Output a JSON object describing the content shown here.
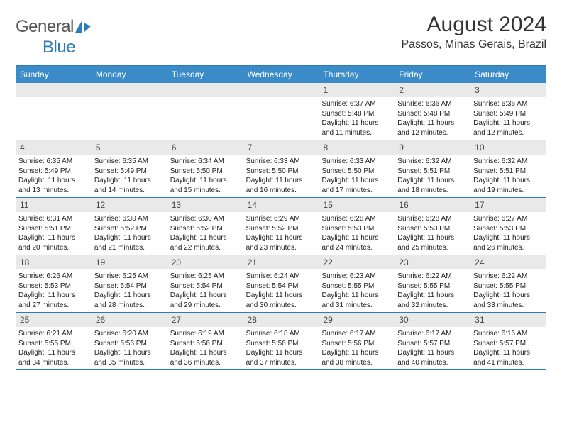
{
  "brand": {
    "part1": "General",
    "part2": "Blue"
  },
  "colors": {
    "accent": "#3b8bc9",
    "border": "#2b7bbd",
    "daynum_bg": "#e9e9e9",
    "text": "#222222"
  },
  "title": "August 2024",
  "location": "Passos, Minas Gerais, Brazil",
  "day_names": [
    "Sunday",
    "Monday",
    "Tuesday",
    "Wednesday",
    "Thursday",
    "Friday",
    "Saturday"
  ],
  "weeks": [
    [
      null,
      null,
      null,
      null,
      {
        "n": "1",
        "sr": "6:37 AM",
        "ss": "5:48 PM",
        "dl": "11 hours and 11 minutes."
      },
      {
        "n": "2",
        "sr": "6:36 AM",
        "ss": "5:48 PM",
        "dl": "11 hours and 12 minutes."
      },
      {
        "n": "3",
        "sr": "6:36 AM",
        "ss": "5:49 PM",
        "dl": "11 hours and 12 minutes."
      }
    ],
    [
      {
        "n": "4",
        "sr": "6:35 AM",
        "ss": "5:49 PM",
        "dl": "11 hours and 13 minutes."
      },
      {
        "n": "5",
        "sr": "6:35 AM",
        "ss": "5:49 PM",
        "dl": "11 hours and 14 minutes."
      },
      {
        "n": "6",
        "sr": "6:34 AM",
        "ss": "5:50 PM",
        "dl": "11 hours and 15 minutes."
      },
      {
        "n": "7",
        "sr": "6:33 AM",
        "ss": "5:50 PM",
        "dl": "11 hours and 16 minutes."
      },
      {
        "n": "8",
        "sr": "6:33 AM",
        "ss": "5:50 PM",
        "dl": "11 hours and 17 minutes."
      },
      {
        "n": "9",
        "sr": "6:32 AM",
        "ss": "5:51 PM",
        "dl": "11 hours and 18 minutes."
      },
      {
        "n": "10",
        "sr": "6:32 AM",
        "ss": "5:51 PM",
        "dl": "11 hours and 19 minutes."
      }
    ],
    [
      {
        "n": "11",
        "sr": "6:31 AM",
        "ss": "5:51 PM",
        "dl": "11 hours and 20 minutes."
      },
      {
        "n": "12",
        "sr": "6:30 AM",
        "ss": "5:52 PM",
        "dl": "11 hours and 21 minutes."
      },
      {
        "n": "13",
        "sr": "6:30 AM",
        "ss": "5:52 PM",
        "dl": "11 hours and 22 minutes."
      },
      {
        "n": "14",
        "sr": "6:29 AM",
        "ss": "5:52 PM",
        "dl": "11 hours and 23 minutes."
      },
      {
        "n": "15",
        "sr": "6:28 AM",
        "ss": "5:53 PM",
        "dl": "11 hours and 24 minutes."
      },
      {
        "n": "16",
        "sr": "6:28 AM",
        "ss": "5:53 PM",
        "dl": "11 hours and 25 minutes."
      },
      {
        "n": "17",
        "sr": "6:27 AM",
        "ss": "5:53 PM",
        "dl": "11 hours and 26 minutes."
      }
    ],
    [
      {
        "n": "18",
        "sr": "6:26 AM",
        "ss": "5:53 PM",
        "dl": "11 hours and 27 minutes."
      },
      {
        "n": "19",
        "sr": "6:25 AM",
        "ss": "5:54 PM",
        "dl": "11 hours and 28 minutes."
      },
      {
        "n": "20",
        "sr": "6:25 AM",
        "ss": "5:54 PM",
        "dl": "11 hours and 29 minutes."
      },
      {
        "n": "21",
        "sr": "6:24 AM",
        "ss": "5:54 PM",
        "dl": "11 hours and 30 minutes."
      },
      {
        "n": "22",
        "sr": "6:23 AM",
        "ss": "5:55 PM",
        "dl": "11 hours and 31 minutes."
      },
      {
        "n": "23",
        "sr": "6:22 AM",
        "ss": "5:55 PM",
        "dl": "11 hours and 32 minutes."
      },
      {
        "n": "24",
        "sr": "6:22 AM",
        "ss": "5:55 PM",
        "dl": "11 hours and 33 minutes."
      }
    ],
    [
      {
        "n": "25",
        "sr": "6:21 AM",
        "ss": "5:55 PM",
        "dl": "11 hours and 34 minutes."
      },
      {
        "n": "26",
        "sr": "6:20 AM",
        "ss": "5:56 PM",
        "dl": "11 hours and 35 minutes."
      },
      {
        "n": "27",
        "sr": "6:19 AM",
        "ss": "5:56 PM",
        "dl": "11 hours and 36 minutes."
      },
      {
        "n": "28",
        "sr": "6:18 AM",
        "ss": "5:56 PM",
        "dl": "11 hours and 37 minutes."
      },
      {
        "n": "29",
        "sr": "6:17 AM",
        "ss": "5:56 PM",
        "dl": "11 hours and 38 minutes."
      },
      {
        "n": "30",
        "sr": "6:17 AM",
        "ss": "5:57 PM",
        "dl": "11 hours and 40 minutes."
      },
      {
        "n": "31",
        "sr": "6:16 AM",
        "ss": "5:57 PM",
        "dl": "11 hours and 41 minutes."
      }
    ]
  ],
  "labels": {
    "sunrise": "Sunrise:",
    "sunset": "Sunset:",
    "daylight": "Daylight:"
  }
}
